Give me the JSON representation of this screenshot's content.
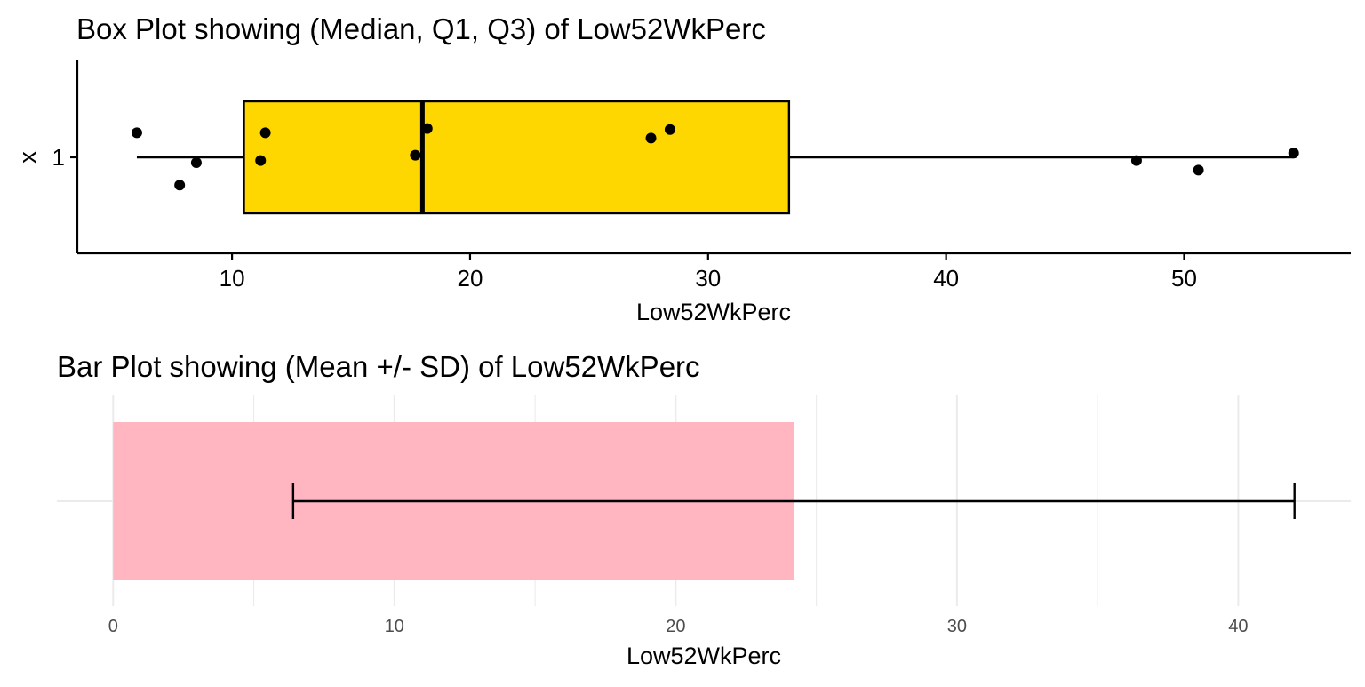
{
  "chart_data": [
    {
      "type": "box",
      "title": "Box Plot showing (Median, Q1, Q3) of Low52WkPerc",
      "xlabel": "Low52WkPerc",
      "ylabel": "x",
      "y_categories": [
        "1"
      ],
      "xlim": [
        3.5,
        57
      ],
      "x_ticks": [
        10,
        20,
        30,
        40,
        50
      ],
      "box": {
        "min": 6.0,
        "q1": 10.5,
        "median": 18.0,
        "q3": 33.4,
        "max": 54.6
      },
      "points": [
        {
          "x": 6.0,
          "jitter": 0.23
        },
        {
          "x": 7.8,
          "jitter": -0.26
        },
        {
          "x": 8.5,
          "jitter": -0.05
        },
        {
          "x": 11.2,
          "jitter": -0.03
        },
        {
          "x": 11.4,
          "jitter": 0.23
        },
        {
          "x": 17.7,
          "jitter": 0.02
        },
        {
          "x": 18.2,
          "jitter": 0.27
        },
        {
          "x": 27.6,
          "jitter": 0.18
        },
        {
          "x": 28.4,
          "jitter": 0.26
        },
        {
          "x": 48.0,
          "jitter": -0.03
        },
        {
          "x": 50.6,
          "jitter": -0.12
        },
        {
          "x": 54.6,
          "jitter": 0.04
        }
      ],
      "colors": {
        "box_fill": "#FFD700",
        "box_stroke": "#000000",
        "points": "#000000"
      },
      "grid": false
    },
    {
      "type": "bar",
      "title": "Bar Plot showing (Mean +/- SD) of Low52WkPerc",
      "xlabel": "Low52WkPerc",
      "ylabel": "",
      "xlim": [
        -2,
        44
      ],
      "x_ticks": [
        0,
        10,
        20,
        30,
        40
      ],
      "bar": {
        "mean": 24.2,
        "sd_low": 6.4,
        "sd_high": 42.0
      },
      "colors": {
        "bar_fill": "#FFB6C1",
        "errorbar": "#000000",
        "grid": "#EBEBEB"
      },
      "grid": true
    }
  ]
}
